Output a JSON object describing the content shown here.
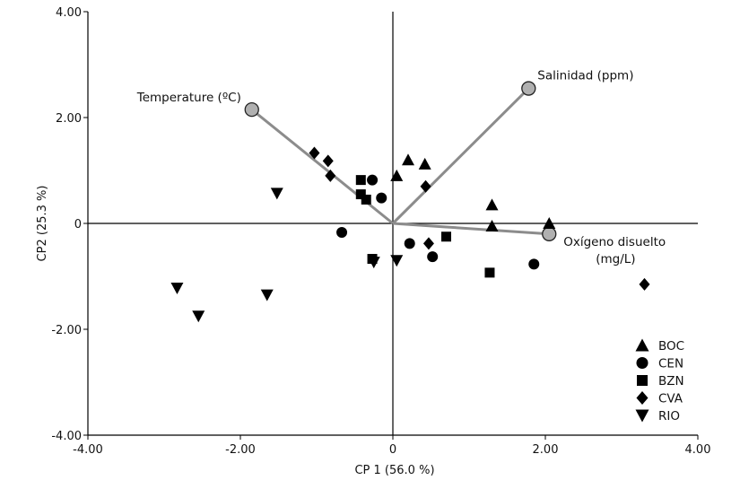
{
  "chart_data": {
    "type": "scatter",
    "title": "",
    "xlabel": "CP 1 (56.0 %)",
    "ylabel": "CP2 (25.3 %)",
    "xlim": [
      -4,
      4
    ],
    "ylim": [
      -4,
      4
    ],
    "xticks": [
      -4,
      -2,
      0,
      2,
      4
    ],
    "yticks": [
      -4,
      -2,
      0,
      2,
      4
    ],
    "xtick_labels": [
      "-4.00",
      "-2.00",
      "0",
      "2.00",
      "4.00"
    ],
    "ytick_labels": [
      "-4.00",
      "-2.00",
      "0",
      "2.00",
      "4.00"
    ],
    "grid": false,
    "legend_position": "bottom-right",
    "vectors": [
      {
        "label_lines": [
          "Temperature (ºC)"
        ],
        "x": -1.85,
        "y": 2.15
      },
      {
        "label_lines": [
          "Salinidad (ppm)"
        ],
        "x": 1.78,
        "y": 2.55
      },
      {
        "label_lines": [
          "Oxígeno disuelto",
          "(mg/L)"
        ],
        "x": 2.05,
        "y": -0.2
      }
    ],
    "series": [
      {
        "name": "BOC",
        "marker": "triangle-up",
        "points": [
          [
            0.2,
            1.2
          ],
          [
            0.42,
            1.12
          ],
          [
            0.05,
            0.9
          ],
          [
            1.3,
            0.35
          ],
          [
            1.3,
            -0.05
          ],
          [
            2.05,
            0.0
          ]
        ]
      },
      {
        "name": "CEN",
        "marker": "circle",
        "points": [
          [
            -0.27,
            0.82
          ],
          [
            -0.15,
            0.48
          ],
          [
            -0.67,
            -0.17
          ],
          [
            0.22,
            -0.38
          ],
          [
            0.52,
            -0.63
          ],
          [
            1.85,
            -0.77
          ]
        ]
      },
      {
        "name": "BZN",
        "marker": "square",
        "points": [
          [
            -0.42,
            0.82
          ],
          [
            -0.42,
            0.55
          ],
          [
            -0.35,
            0.45
          ],
          [
            -0.27,
            -0.67
          ],
          [
            0.7,
            -0.25
          ],
          [
            1.27,
            -0.93
          ]
        ]
      },
      {
        "name": "CVA",
        "marker": "diamond",
        "points": [
          [
            -1.03,
            1.33
          ],
          [
            -0.85,
            1.18
          ],
          [
            -0.82,
            0.9
          ],
          [
            0.43,
            0.7
          ],
          [
            0.47,
            -0.38
          ],
          [
            3.3,
            -1.15
          ]
        ]
      },
      {
        "name": "RIO",
        "marker": "triangle-down",
        "points": [
          [
            -1.52,
            0.57
          ],
          [
            -2.83,
            -1.22
          ],
          [
            -2.55,
            -1.75
          ],
          [
            -1.65,
            -1.35
          ],
          [
            -0.25,
            -0.73
          ],
          [
            0.05,
            -0.7
          ]
        ]
      }
    ]
  }
}
